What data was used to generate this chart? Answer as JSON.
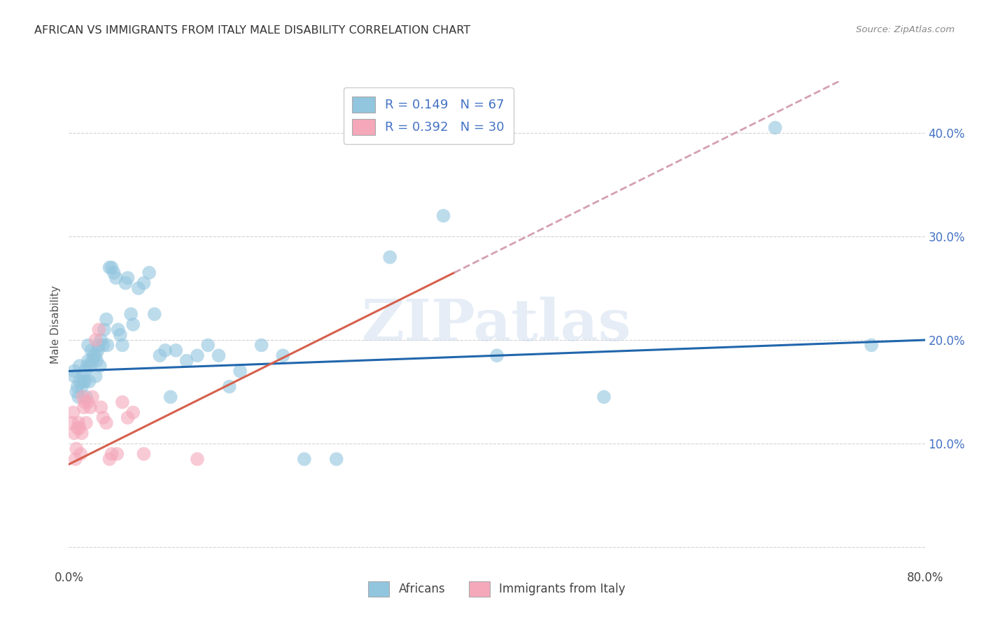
{
  "title": "AFRICAN VS IMMIGRANTS FROM ITALY MALE DISABILITY CORRELATION CHART",
  "source": "Source: ZipAtlas.com",
  "ylabel": "Male Disability",
  "xlim": [
    0.0,
    0.8
  ],
  "ylim": [
    -0.02,
    0.45
  ],
  "blue_color": "#92c5de",
  "pink_color": "#f4a8ba",
  "trendline_blue": "#2166ac",
  "trendline_pink": "#d6604d",
  "trendline_pink_dash": "#d4a0b0",
  "watermark": "ZIPatlas",
  "africans_x": [
    0.005,
    0.005,
    0.007,
    0.008,
    0.009,
    0.01,
    0.01,
    0.012,
    0.013,
    0.014,
    0.015,
    0.015,
    0.016,
    0.017,
    0.018,
    0.018,
    0.019,
    0.02,
    0.021,
    0.022,
    0.023,
    0.025,
    0.025,
    0.026,
    0.027,
    0.028,
    0.029,
    0.03,
    0.032,
    0.033,
    0.035,
    0.036,
    0.038,
    0.04,
    0.042,
    0.044,
    0.046,
    0.048,
    0.05,
    0.053,
    0.055,
    0.058,
    0.06,
    0.065,
    0.07,
    0.075,
    0.08,
    0.085,
    0.09,
    0.095,
    0.1,
    0.11,
    0.12,
    0.13,
    0.14,
    0.15,
    0.16,
    0.18,
    0.2,
    0.22,
    0.25,
    0.3,
    0.35,
    0.4,
    0.5,
    0.66,
    0.75
  ],
  "africans_y": [
    0.165,
    0.17,
    0.15,
    0.155,
    0.145,
    0.16,
    0.175,
    0.155,
    0.165,
    0.16,
    0.17,
    0.16,
    0.145,
    0.175,
    0.18,
    0.195,
    0.16,
    0.175,
    0.19,
    0.18,
    0.185,
    0.165,
    0.185,
    0.18,
    0.19,
    0.195,
    0.175,
    0.2,
    0.195,
    0.21,
    0.22,
    0.195,
    0.27,
    0.27,
    0.265,
    0.26,
    0.21,
    0.205,
    0.195,
    0.255,
    0.26,
    0.225,
    0.215,
    0.25,
    0.255,
    0.265,
    0.225,
    0.185,
    0.19,
    0.145,
    0.19,
    0.18,
    0.185,
    0.195,
    0.185,
    0.155,
    0.17,
    0.195,
    0.185,
    0.085,
    0.085,
    0.28,
    0.32,
    0.185,
    0.145,
    0.405,
    0.195
  ],
  "italy_x": [
    0.003,
    0.004,
    0.005,
    0.006,
    0.007,
    0.008,
    0.009,
    0.01,
    0.011,
    0.012,
    0.013,
    0.014,
    0.015,
    0.016,
    0.018,
    0.02,
    0.022,
    0.025,
    0.028,
    0.03,
    0.032,
    0.035,
    0.038,
    0.04,
    0.045,
    0.05,
    0.055,
    0.06,
    0.07,
    0.12
  ],
  "italy_y": [
    0.12,
    0.13,
    0.11,
    0.085,
    0.095,
    0.115,
    0.12,
    0.115,
    0.09,
    0.11,
    0.145,
    0.135,
    0.14,
    0.12,
    0.14,
    0.135,
    0.145,
    0.2,
    0.21,
    0.135,
    0.125,
    0.12,
    0.085,
    0.09,
    0.09,
    0.14,
    0.125,
    0.13,
    0.09,
    0.085
  ]
}
